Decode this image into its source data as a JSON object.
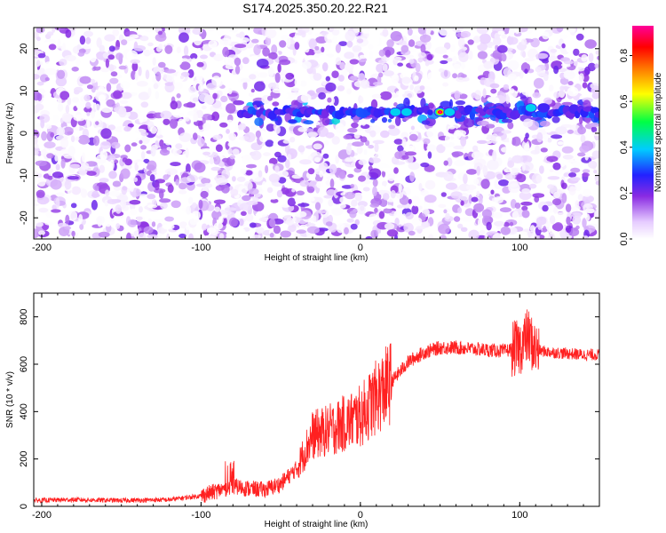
{
  "title": "S174.2025.350.20.22.R21",
  "colors": {
    "snr_line": "#ff2020",
    "axis": "#000000",
    "background": "#ffffff"
  },
  "chart_data": [
    {
      "type": "heatmap",
      "name": "spectrogram",
      "xlabel": "Height of straight line (km)",
      "ylabel": "Frequency (Hz)",
      "xlim": [
        -205,
        150
      ],
      "ylim": [
        -25,
        25
      ],
      "x_ticks": [
        -200,
        -100,
        0,
        100
      ],
      "x_tick_labels": [
        "-200",
        "-100",
        "0",
        "100"
      ],
      "y_ticks": [
        20,
        10,
        0,
        -10,
        -20
      ],
      "y_tick_labels": [
        "20",
        "10",
        "0",
        "-10",
        "-20"
      ],
      "colorbar": {
        "label": "Normalized spectral amplitude",
        "range": [
          0,
          0.93
        ],
        "ticks": [
          0.0,
          0.2,
          0.4,
          0.6,
          0.8
        ],
        "tick_labels": [
          "0.0",
          "0.2",
          "0.4",
          "0.6",
          "0.8"
        ]
      },
      "signal_band": {
        "x_range": [
          -75,
          150
        ],
        "frequency_hz": 5
      },
      "peaks": [
        {
          "x": 22,
          "y": 5,
          "amp": 0.45
        },
        {
          "x": 29,
          "y": 5,
          "amp": 0.4
        },
        {
          "x": 50,
          "y": 5,
          "amp": 0.92
        },
        {
          "x": 56,
          "y": 5,
          "amp": 0.45
        },
        {
          "x": 107,
          "y": 6,
          "amp": 0.42
        },
        {
          "x": 115,
          "y": 6,
          "amp": 0.35
        }
      ],
      "gaps_x": [
        [
          46,
          50
        ]
      ]
    },
    {
      "type": "line",
      "name": "snr",
      "xlabel": "Height of straight line (km)",
      "ylabel": "SNR (10 * v/v)",
      "xlim": [
        -205,
        150
      ],
      "ylim": [
        0,
        900
      ],
      "x_ticks": [
        -200,
        -100,
        0,
        100
      ],
      "x_tick_labels": [
        "-200",
        "-100",
        "0",
        "100"
      ],
      "y_ticks": [
        0,
        200,
        400,
        600,
        800
      ],
      "y_tick_labels": [
        "0",
        "200",
        "400",
        "600",
        "800"
      ],
      "series": [
        {
          "name": "SNR",
          "x": [
            -205,
            -180,
            -150,
            -120,
            -100,
            -90,
            -80,
            -70,
            -60,
            -50,
            -40,
            -30,
            -20,
            -10,
            0,
            10,
            20,
            30,
            40,
            50,
            60,
            70,
            80,
            90,
            100,
            105,
            110,
            120,
            130,
            140,
            150
          ],
          "values": [
            25,
            28,
            25,
            28,
            45,
            65,
            85,
            75,
            70,
            95,
            160,
            300,
            320,
            350,
            380,
            460,
            530,
            610,
            650,
            670,
            670,
            665,
            660,
            655,
            670,
            720,
            660,
            650,
            645,
            640,
            640
          ]
        }
      ]
    }
  ]
}
